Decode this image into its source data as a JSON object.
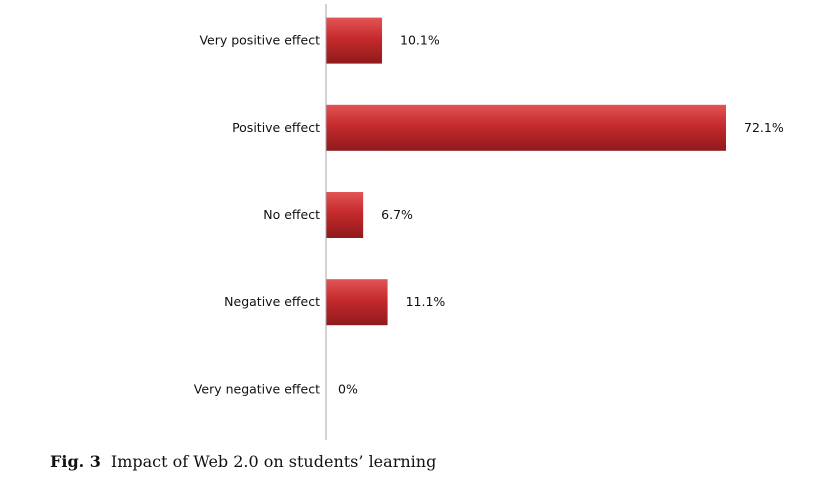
{
  "chart_data": {
    "type": "bar",
    "orientation": "horizontal",
    "categories": [
      "Very positive effect",
      "Positive effect",
      "No effect",
      "Negative effect",
      "Very negative effect"
    ],
    "values": [
      10.1,
      72.1,
      6.7,
      11.1,
      0
    ],
    "value_labels": [
      "10.1%",
      "72.1%",
      "6.7%",
      "11.1%",
      "0%"
    ],
    "unit": "%",
    "xlim": [
      0,
      72.1
    ],
    "grid": false,
    "legend": "none",
    "bar_color": "#c0282b",
    "axis_color": "#a6a6a6"
  },
  "caption": {
    "label": "Fig. 3",
    "text": "Impact of Web 2.0 on students’ learning"
  }
}
